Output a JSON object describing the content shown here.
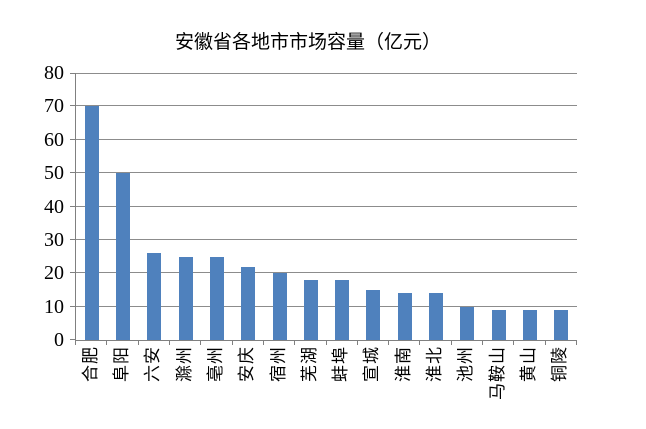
{
  "chart_data": {
    "type": "bar",
    "title": "安徽省各地市市场容量（亿元）",
    "categories": [
      "合肥",
      "阜阳",
      "六安",
      "滁州",
      "亳州",
      "安庆",
      "宿州",
      "芜湖",
      "蚌埠",
      "宣城",
      "淮南",
      "淮北",
      "池州",
      "马鞍山",
      "黄山",
      "铜陵"
    ],
    "values": [
      70,
      50,
      26,
      25,
      25,
      22,
      20,
      18,
      18,
      15,
      14,
      14,
      10,
      9,
      9,
      9
    ],
    "xlabel": "",
    "ylabel": "",
    "ylim": [
      0,
      80
    ],
    "ytick_interval": 10,
    "ytick_labels": [
      "0",
      "10",
      "20",
      "30",
      "40",
      "50",
      "60",
      "70",
      "80"
    ],
    "grid": true,
    "legend": false,
    "x_labels_rotation_deg": -90,
    "bar_color": "#4F81BD",
    "gridline_color": "#8C8C8C",
    "axis_color": "#808080",
    "text_color": "#000000",
    "background_color": "#FFFFFF"
  }
}
